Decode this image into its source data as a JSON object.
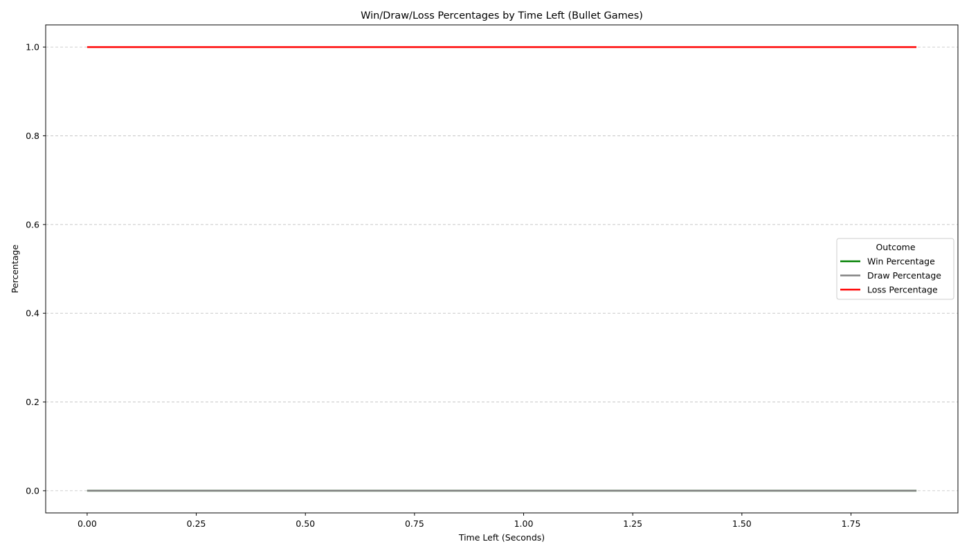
{
  "chart_data": {
    "type": "line",
    "title": "Win/Draw/Loss Percentages by Time Left (Bullet Games)",
    "xlabel": "Time Left (Seconds)",
    "ylabel": "Percentage",
    "xlim": [
      -0.095,
      1.995
    ],
    "ylim": [
      -0.05,
      1.05
    ],
    "x_ticks": [
      0.0,
      0.25,
      0.5,
      0.75,
      1.0,
      1.25,
      1.5,
      1.75
    ],
    "x_tick_labels": [
      "0.00",
      "0.25",
      "0.50",
      "0.75",
      "1.00",
      "1.25",
      "1.50",
      "1.75"
    ],
    "y_ticks": [
      0.0,
      0.2,
      0.4,
      0.6,
      0.8,
      1.0
    ],
    "y_tick_labels": [
      "0.0",
      "0.2",
      "0.4",
      "0.6",
      "0.8",
      "1.0"
    ],
    "grid": {
      "y": true,
      "x": false,
      "style": "dashed"
    },
    "legend": {
      "title": "Outcome",
      "position": "center-right"
    },
    "x": [
      0.0,
      0.1,
      0.2,
      0.3,
      0.4,
      0.5,
      0.6,
      0.7,
      0.8,
      0.9,
      1.0,
      1.1,
      1.2,
      1.3,
      1.4,
      1.5,
      1.6,
      1.7,
      1.8,
      1.9
    ],
    "series": [
      {
        "name": "Win Percentage",
        "color": "#008000",
        "values": [
          0,
          0,
          0,
          0,
          0,
          0,
          0,
          0,
          0,
          0,
          0,
          0,
          0,
          0,
          0,
          0,
          0,
          0,
          0,
          0
        ]
      },
      {
        "name": "Draw Percentage",
        "color": "#808080",
        "values": [
          0,
          0,
          0,
          0,
          0,
          0,
          0,
          0,
          0,
          0,
          0,
          0,
          0,
          0,
          0,
          0,
          0,
          0,
          0,
          0
        ]
      },
      {
        "name": "Loss Percentage",
        "color": "#ff0000",
        "values": [
          1,
          1,
          1,
          1,
          1,
          1,
          1,
          1,
          1,
          1,
          1,
          1,
          1,
          1,
          1,
          1,
          1,
          1,
          1,
          1
        ]
      }
    ]
  }
}
